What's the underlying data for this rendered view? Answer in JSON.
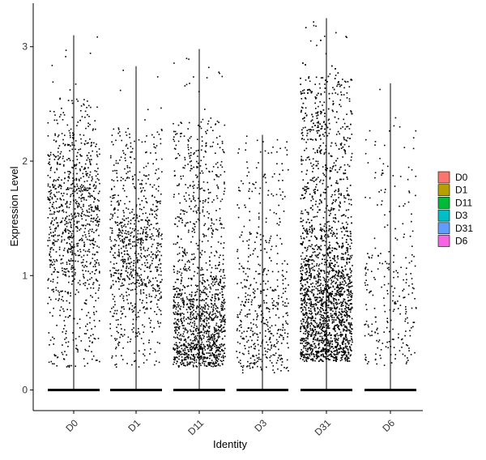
{
  "chart_data": {
    "type": "scatter",
    "subtype": "violin-jitter",
    "xlabel": "Identity",
    "ylabel": "Expression Level",
    "categories": [
      "D0",
      "D1",
      "D11",
      "D3",
      "D31",
      "D6"
    ],
    "ylim": [
      -0.18,
      3.38
    ],
    "y_ticks": [
      0,
      1,
      2,
      3
    ],
    "grid": false,
    "legend_position": "right",
    "legend": [
      {
        "label": "D0",
        "color": "#F8766D"
      },
      {
        "label": "D1",
        "color": "#B79F00"
      },
      {
        "label": "D11",
        "color": "#00BA38"
      },
      {
        "label": "D3",
        "color": "#00BFC4"
      },
      {
        "label": "D31",
        "color": "#619CFF"
      },
      {
        "label": "D6",
        "color": "#F564E3"
      }
    ],
    "series": [
      {
        "name": "D0",
        "y_max": 3.1,
        "nonzero_points": 1000,
        "nonzero_range": [
          0.2,
          2.55
        ],
        "peak": 1.5
      },
      {
        "name": "D1",
        "y_max": 2.83,
        "nonzero_points": 850,
        "nonzero_range": [
          0.2,
          2.3
        ],
        "peak": 1.2
      },
      {
        "name": "D11",
        "y_max": 2.98,
        "nonzero_points": 1400,
        "nonzero_range": [
          0.2,
          2.35
        ],
        "peak": 0.5
      },
      {
        "name": "D3",
        "y_max": 2.23,
        "nonzero_points": 500,
        "nonzero_range": [
          0.15,
          2.2
        ],
        "peak": 0.6
      },
      {
        "name": "D31",
        "y_max": 3.25,
        "nonzero_points": 2700,
        "nonzero_range": [
          0.25,
          2.75
        ],
        "peak": 0.7
      },
      {
        "name": "D6",
        "y_max": 2.68,
        "nonzero_points": 260,
        "nonzero_range": [
          0.2,
          2.3
        ],
        "peak": 0.7
      }
    ]
  }
}
